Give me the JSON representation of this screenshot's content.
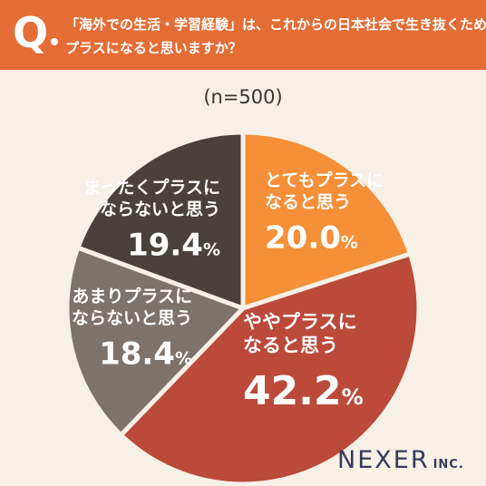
{
  "question": {
    "mark": "Q",
    "line1": "「海外での生活・学習経験」は、これからの日本社会で生き抜くために",
    "line2": "プラスになると思いますか？"
  },
  "sample_label": "(n=500)",
  "brand": {
    "name": "NEXER",
    "suffix": "INC."
  },
  "colors": {
    "header": "#e46d36",
    "background": "#f6f0e6",
    "separator": "#f6f0e6",
    "label_text": "#ffffff"
  },
  "chart_data": {
    "type": "pie",
    "start": "12 o'clock",
    "direction": "clockwise",
    "slices": [
      {
        "label_lines": [
          "とてもプラスに",
          "なると思う"
        ],
        "value": 20.0,
        "value_text": "20.0",
        "unit": "%",
        "color": "#f58f38"
      },
      {
        "label_lines": [
          "ややプラスに",
          "なると思う"
        ],
        "value": 42.2,
        "value_text": "42.2",
        "unit": "%",
        "color": "#bb4a3a"
      },
      {
        "label_lines": [
          "あまりプラスに",
          "ならないと思う"
        ],
        "value": 18.4,
        "value_text": "18.4",
        "unit": "%",
        "color": "#7d736a"
      },
      {
        "label_lines": [
          "まったくプラスに",
          "ならないと思う"
        ],
        "value": 19.4,
        "value_text": "19.4",
        "unit": "%",
        "color": "#4a413c"
      }
    ]
  }
}
